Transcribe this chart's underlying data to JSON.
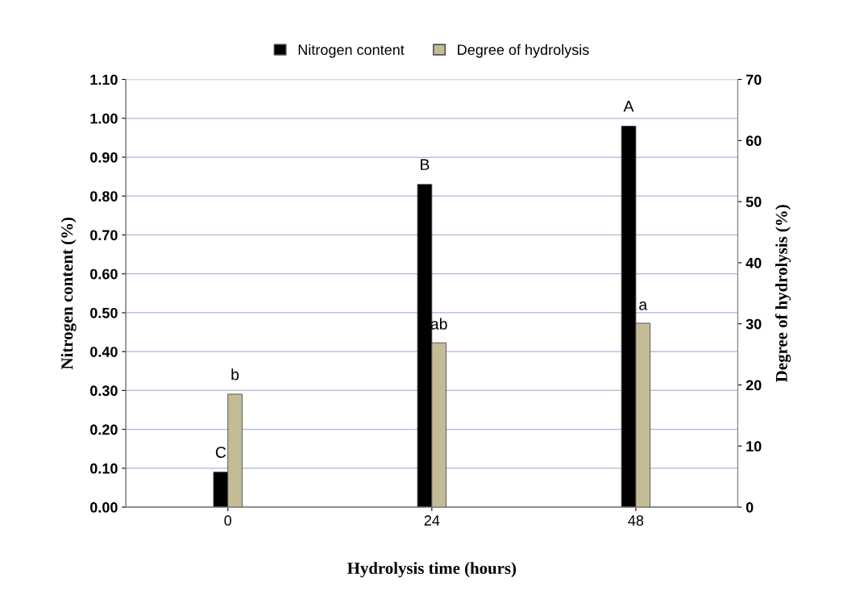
{
  "chart_data": {
    "type": "bar",
    "xlabel": "Hydrolysis time (hours)",
    "ylabel": "Nitrogen content (%)",
    "y2label": "Degree of hydrolysis (%)",
    "categories": [
      "0",
      "24",
      "48"
    ],
    "series": [
      {
        "name": "Nitrogen content",
        "color": "#000000",
        "values": [
          0.09,
          0.83,
          0.98
        ]
      },
      {
        "name": "Degree of hydrolysis",
        "color": "#c4bc96",
        "values": [
          18.5,
          26.9,
          30.1
        ],
        "axis": "y2"
      }
    ],
    "ylim": [
      0,
      1.1
    ],
    "yticks": [
      {
        "value": 0,
        "label": "0.00"
      },
      {
        "value": 0.1,
        "label": "0.10"
      },
      {
        "value": 0.2,
        "label": "0.20"
      },
      {
        "value": 0.3,
        "label": "0.30"
      },
      {
        "value": 0.4,
        "label": "0.40"
      },
      {
        "value": 0.5,
        "label": "0.50"
      },
      {
        "value": 0.6,
        "label": "0.60"
      },
      {
        "value": 0.7,
        "label": "0.70"
      },
      {
        "value": 0.8,
        "label": "0.80"
      },
      {
        "value": 0.9,
        "label": "0.90"
      },
      {
        "value": 1.0,
        "label": "1.00"
      },
      {
        "value": 1.1,
        "label": "1.10"
      }
    ],
    "y2lim": [
      0,
      70
    ],
    "y2ticks": [
      0,
      10,
      20,
      30,
      40,
      50,
      60,
      70
    ],
    "annotations": [
      {
        "text": "C",
        "x": "0",
        "y": 0.09
      },
      {
        "text": "B",
        "x": "24",
        "y": 0.83
      },
      {
        "text": "A",
        "x": "48",
        "y": 0.98
      },
      {
        "text": "b",
        "x": "0",
        "y": 0.29
      },
      {
        "text": "ab",
        "x": "24",
        "y": 0.42
      },
      {
        "text": "a",
        "x": "48",
        "y": 0.47
      }
    ],
    "grid": "y",
    "legend": "top"
  }
}
